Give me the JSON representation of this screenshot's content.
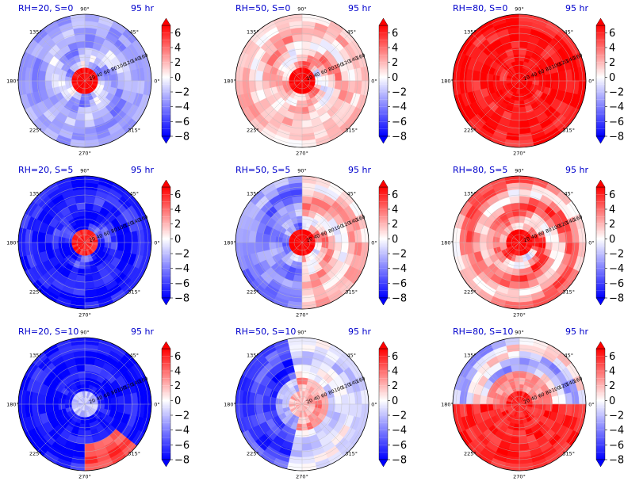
{
  "chart_data": {
    "type": "heatmap",
    "layout": {
      "rows": 3,
      "cols": 3
    },
    "radial_ticks": [
      "20",
      "40",
      "60",
      "80",
      "100",
      "120",
      "140",
      "160"
    ],
    "angle_labels": [
      "0°",
      "45°",
      "90°",
      "135°",
      "180°",
      "225°",
      "270°",
      "315°"
    ],
    "colorbar": {
      "ticks": [
        "6",
        "4",
        "2",
        "0",
        "−2",
        "−4",
        "−6",
        "−8"
      ],
      "min": -8,
      "max": 7,
      "extend": "both",
      "colormap": "bwr"
    },
    "colors": {
      "positive": "#ff0000",
      "neutral": "#ffffff",
      "negative": "#0000ff",
      "title": "#0000cc"
    },
    "panels": [
      {
        "label": "RH=20, S=0",
        "time": "95 hr",
        "core": 7,
        "background": -2.5,
        "pattern": "mixed-blue"
      },
      {
        "label": "RH=50, S=0",
        "time": "95 hr",
        "core": 7,
        "background": 1.5,
        "pattern": "light-red"
      },
      {
        "label": "RH=80, S=0",
        "time": "95 hr",
        "core": 7,
        "background": 6.5,
        "pattern": "saturated-red"
      },
      {
        "label": "RH=20, S=5",
        "time": "95 hr",
        "core": 6,
        "background": -7,
        "pattern": "deep-blue"
      },
      {
        "label": "RH=50, S=5",
        "time": "95 hr",
        "core": 7,
        "background": -1,
        "pattern": "blue-west-red-east"
      },
      {
        "label": "RH=80, S=5",
        "time": "95 hr",
        "core": 7,
        "background": 3,
        "pattern": "red-with-blue-bands"
      },
      {
        "label": "RH=20, S=10",
        "time": "95 hr",
        "core": -2,
        "background": -7.5,
        "pattern": "deep-blue-red-south"
      },
      {
        "label": "RH=50, S=10",
        "time": "95 hr",
        "core": 2,
        "background": -4,
        "pattern": "blue-west-red-center"
      },
      {
        "label": "RH=80, S=10",
        "time": "95 hr",
        "core": 6,
        "background": 5,
        "pattern": "red-south-blue-north"
      }
    ]
  }
}
